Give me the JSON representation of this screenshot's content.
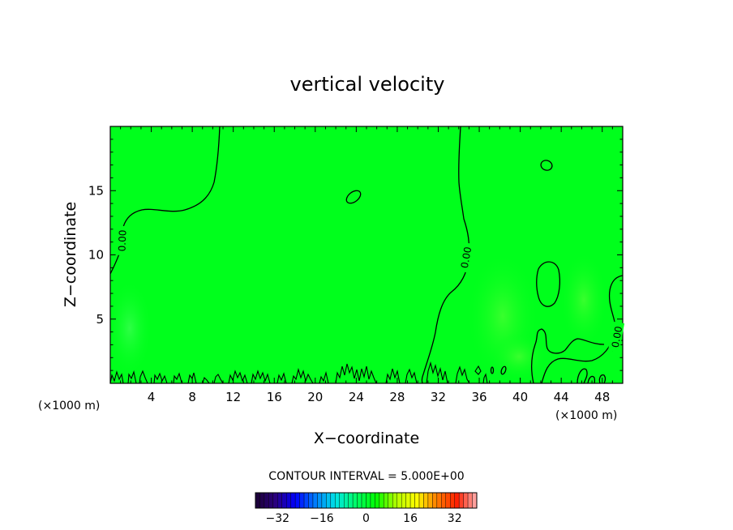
{
  "chart_data": {
    "type": "heatmap",
    "title": "vertical velocity",
    "xlabel": "X−coordinate",
    "ylabel": "Z−coordinate",
    "x_unit": "(×1000 m)",
    "z_unit": "(×1000 m)",
    "xlim": [
      0,
      50
    ],
    "ylim": [
      0,
      20
    ],
    "x_ticks": [
      "4",
      "8",
      "12",
      "16",
      "20",
      "24",
      "28",
      "32",
      "36",
      "40",
      "44",
      "48"
    ],
    "y_ticks": [
      "5",
      "10",
      "15"
    ],
    "field_fill_color": "#00ff1c",
    "contour_level_labels": [
      "0.00",
      "0.00",
      "0.00"
    ],
    "contour_interval_text": "CONTOUR INTERVAL = 5.000E+00",
    "colorbar": {
      "ticks": [
        "−32",
        "−16",
        "0",
        "16",
        "32"
      ],
      "tick_values": [
        -32,
        -16,
        0,
        16,
        32
      ],
      "range": [
        -40,
        40
      ],
      "colors": [
        "#1a0033",
        "#2b0080",
        "#0000ff",
        "#0080ff",
        "#00e5e5",
        "#00ff66",
        "#00ff00",
        "#b3ff00",
        "#ffff00",
        "#ff8000",
        "#ff2000",
        "#ffb0b0"
      ]
    }
  }
}
